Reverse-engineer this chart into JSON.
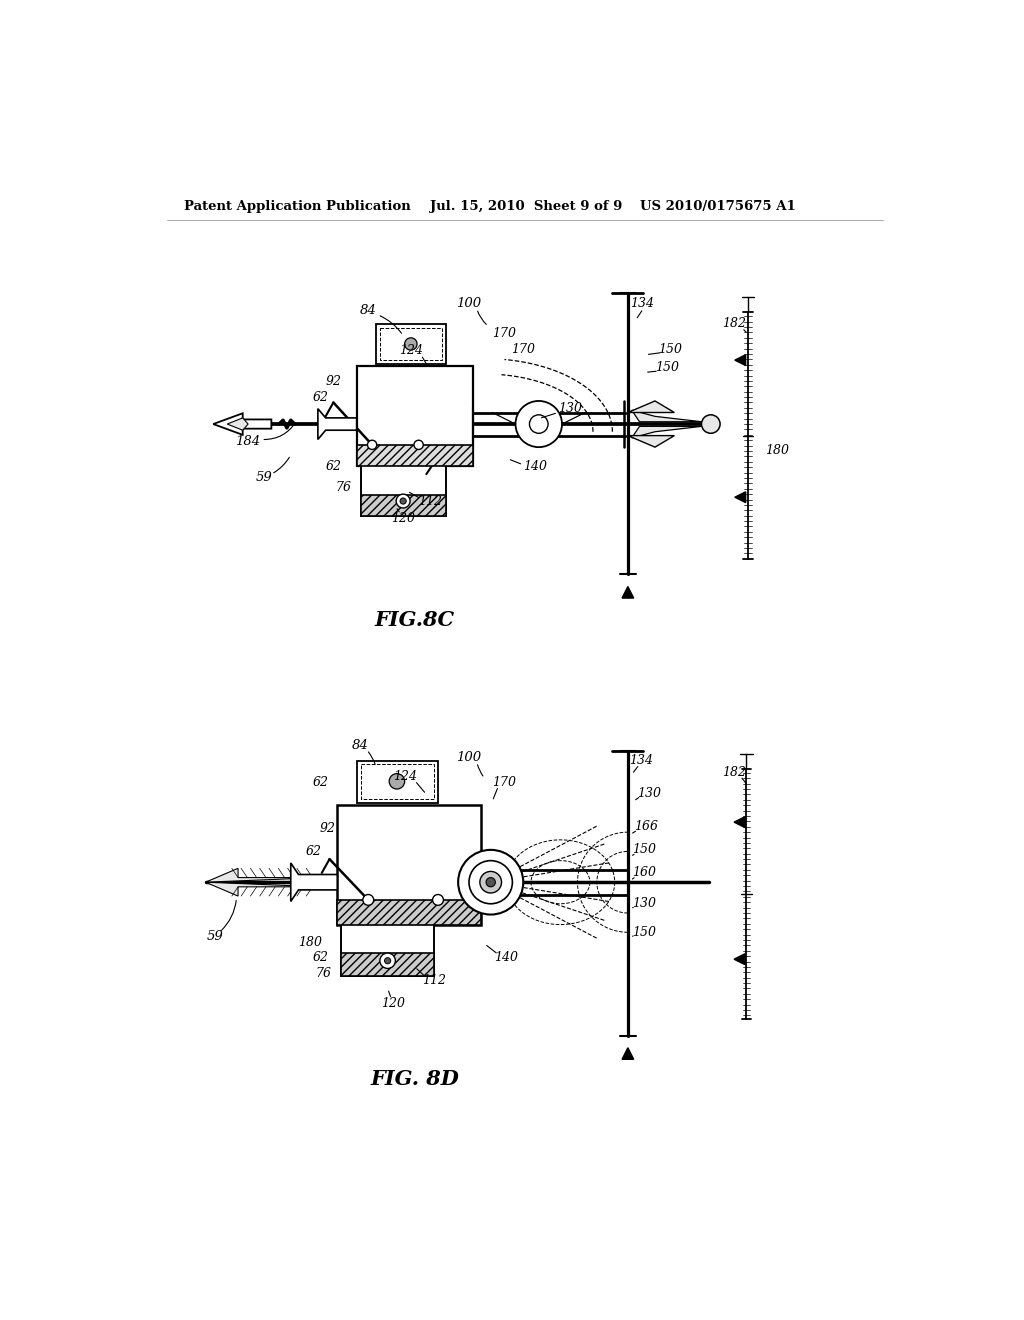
{
  "background_color": "#ffffff",
  "header_left": "Patent Application Publication",
  "header_center": "Jul. 15, 2010  Sheet 9 of 9",
  "header_right": "US 2010/0175675 A1",
  "fig8c_label": "FIG.8C",
  "fig8d_label": "FIG. 8D",
  "line_color": "#1a1a1a",
  "gray_fill": "#c8c8c8",
  "light_gray": "#e8e8e8"
}
